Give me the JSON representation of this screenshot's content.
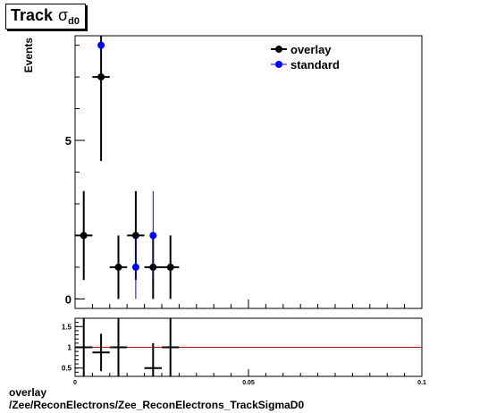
{
  "title": {
    "main": "Track",
    "symbol": "σ",
    "subscript": "d0"
  },
  "footer": {
    "line1": "overlay",
    "line2": "/Zee/ReconElectrons/Zee_ReconElectrons_TrackSigmaD0"
  },
  "colors": {
    "overlay": "#000000",
    "standard": "#0000ff",
    "ratio_line": "#cc0000",
    "axis": "#000000"
  },
  "chart_data": [
    {
      "type": "scatter",
      "ylabel": "Events",
      "xlim": [
        0,
        0.1
      ],
      "ylim": [
        -0.3,
        8.3
      ],
      "y_ticks": [
        0,
        5
      ],
      "y_tick_labels": [
        "0",
        "5"
      ],
      "legend_position": "top-right",
      "series": [
        {
          "name": "overlay",
          "x": [
            0.0025,
            0.0075,
            0.0125,
            0.0175,
            0.0225,
            0.0275
          ],
          "y": [
            2,
            7,
            1,
            2,
            1,
            1
          ],
          "xerr": [
            0.0025,
            0.0025,
            0.0025,
            0.0025,
            0.0025,
            0.0025
          ],
          "yerr": [
            1.4,
            2.65,
            1.0,
            1.4,
            1.0,
            1.0
          ]
        },
        {
          "name": "standard",
          "x": [
            0.0075,
            0.0175,
            0.0225
          ],
          "y": [
            8,
            1,
            2
          ],
          "xerr": [
            0,
            0,
            0
          ],
          "yerr": [
            0,
            1.0,
            1.4
          ]
        }
      ]
    },
    {
      "type": "scatter",
      "xlim": [
        0,
        0.1
      ],
      "ylim": [
        0.3,
        1.7
      ],
      "x_ticks": [
        0,
        0.05,
        0.1
      ],
      "x_tick_labels": [
        "0",
        "0.05",
        "0.1"
      ],
      "y_ticks": [
        0.5,
        1,
        1.5
      ],
      "y_tick_labels": [
        "0.5",
        "1",
        "1.5"
      ],
      "reference_line": 1,
      "points": {
        "x": [
          0.0025,
          0.0075,
          0.0125,
          0.0225,
          0.0275
        ],
        "y": [
          1.0,
          0.875,
          1.0,
          0.5,
          1.0
        ],
        "xerr": [
          0.0025,
          0.0025,
          0.0025,
          0.0025,
          0.0025
        ],
        "yerr": [
          2.0,
          0.45,
          2.0,
          0.6,
          2.0
        ]
      }
    }
  ]
}
